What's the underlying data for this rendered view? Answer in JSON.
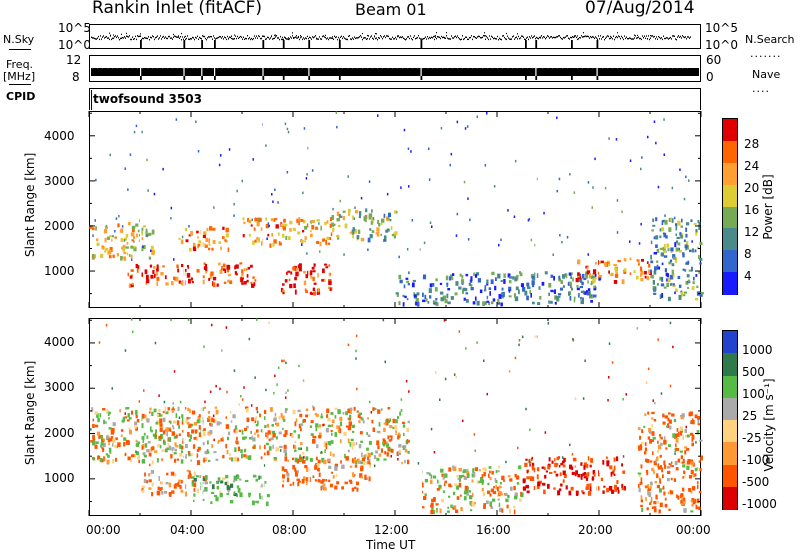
{
  "header": {
    "station": "Rankin Inlet (fitACF)",
    "beam": "Beam 01",
    "date": "07/Aug/2014"
  },
  "strip_labels": {
    "nsky": "N.Sky",
    "freq_line1": "Freq.",
    "freq_line2": "[MHz]",
    "cpid": "CPID",
    "nsearch": "N.Search",
    "nave": "Nave",
    "cpid_value": "twofsound 3503"
  },
  "strip_ticks": {
    "nsky_hi": "10^5",
    "nsky_lo": "10^0",
    "freq_hi": "12",
    "freq_lo": "8",
    "nave_hi": "60",
    "nave_lo": "0"
  },
  "axes": {
    "ylabel": "Slant Range [km]",
    "xlabel": "Time UT",
    "x_ticks": [
      "00:00",
      "04:00",
      "08:00",
      "12:00",
      "16:00",
      "20:00",
      "00:00"
    ],
    "y_ticks": [
      "1000",
      "2000",
      "3000",
      "4000"
    ]
  },
  "colorbars": {
    "power_label": "Power [dB]",
    "power_ticks": [
      "4",
      "8",
      "12",
      "16",
      "20",
      "24",
      "28"
    ],
    "velocity_label": "Velocity [m s⁻¹]",
    "velocity_ticks": [
      "1000",
      "500",
      "100",
      "25",
      "-25",
      "-100",
      "-500",
      "-1000"
    ]
  },
  "chart_data": [
    {
      "type": "heatmap",
      "title": "Power",
      "xlabel": "Time UT",
      "ylabel": "Slant Range [km]",
      "xlim_hours": [
        0,
        24
      ],
      "ylim_km": [
        180,
        4550
      ],
      "colorscale_label": "Power [dB]",
      "colorscale_range_db": [
        0,
        30
      ],
      "colors": [
        "#1a1aff",
        "#3366cc",
        "#4a8a8a",
        "#77aa55",
        "#ddcc33",
        "#ffa030",
        "#ff6600",
        "#e00000"
      ],
      "features": [
        {
          "t_start": 0.0,
          "t_end": 2.5,
          "range_km": [
            1300,
            2100
          ],
          "power_db": 18
        },
        {
          "t_start": 1.5,
          "t_end": 6.5,
          "range_km": [
            700,
            1200
          ],
          "power_db": 26
        },
        {
          "t_start": 3.5,
          "t_end": 5.5,
          "range_km": [
            1500,
            2000
          ],
          "power_db": 22
        },
        {
          "t_start": 6.0,
          "t_end": 9.5,
          "range_km": [
            1600,
            2200
          ],
          "power_db": 20
        },
        {
          "t_start": 7.5,
          "t_end": 9.5,
          "range_km": [
            500,
            1200
          ],
          "power_db": 28
        },
        {
          "t_start": 9.5,
          "t_end": 12.0,
          "range_km": [
            1700,
            2400
          ],
          "power_db": 14
        },
        {
          "t_start": 12.0,
          "t_end": 20.0,
          "range_km": [
            300,
            1000
          ],
          "power_db": 8
        },
        {
          "t_start": 19.0,
          "t_end": 22.0,
          "range_km": [
            800,
            1300
          ],
          "power_db": 22
        },
        {
          "t_start": 22.0,
          "t_end": 24.0,
          "range_km": [
            400,
            2200
          ],
          "power_db": 10
        }
      ]
    },
    {
      "type": "heatmap",
      "title": "Velocity",
      "xlabel": "Time UT",
      "ylabel": "Slant Range [km]",
      "xlim_hours": [
        0,
        24
      ],
      "ylim_km": [
        180,
        4550
      ],
      "colorscale_label": "Velocity [m s⁻¹]",
      "colorscale_ticks": [
        1000,
        500,
        100,
        25,
        -25,
        -100,
        -500,
        -1000
      ],
      "colors": [
        "#2244cc",
        "#2f7a4a",
        "#55bb44",
        "#aaaaaa",
        "#ffd27f",
        "#ff9933",
        "#ff5500",
        "#dd0000"
      ],
      "features": [
        {
          "t_start": 0.0,
          "t_end": 12.5,
          "range_km": [
            1400,
            2600
          ],
          "velocity_ms": 0
        },
        {
          "t_start": 2.0,
          "t_end": 4.5,
          "range_km": [
            700,
            1200
          ],
          "velocity_ms": -200
        },
        {
          "t_start": 4.0,
          "t_end": 7.0,
          "range_km": [
            500,
            1100
          ],
          "velocity_ms": 300
        },
        {
          "t_start": 7.5,
          "t_end": 11.0,
          "range_km": [
            800,
            1500
          ],
          "velocity_ms": -200
        },
        {
          "t_start": 13.0,
          "t_end": 17.0,
          "range_km": [
            300,
            1300
          ],
          "velocity_ms": 0
        },
        {
          "t_start": 17.0,
          "t_end": 21.0,
          "range_km": [
            700,
            1500
          ],
          "velocity_ms": -500
        },
        {
          "t_start": 21.5,
          "t_end": 24.0,
          "range_km": [
            300,
            2500
          ],
          "velocity_ms": -150
        }
      ]
    }
  ]
}
